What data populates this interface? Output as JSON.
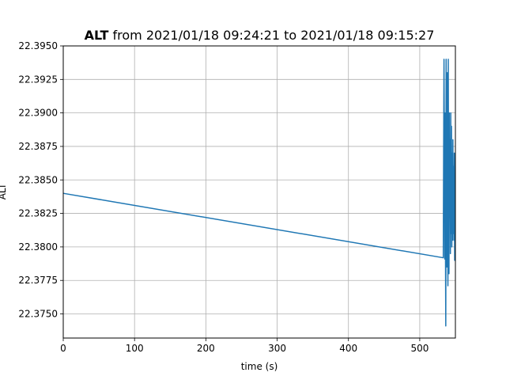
{
  "chart_data": {
    "type": "line",
    "title_bold": "ALT",
    "title_rest": " from 2021/01/18 09:24:21 to 2021/01/18 09:15:27",
    "xlabel": "time (s)",
    "ylabel": "ALT",
    "xlim": [
      0,
      550
    ],
    "ylim": [
      22.3732,
      22.395
    ],
    "xticks": [
      0,
      100,
      200,
      300,
      400,
      500
    ],
    "yticks": [
      22.375,
      22.3775,
      22.38,
      22.3825,
      22.385,
      22.3875,
      22.39,
      22.3925,
      22.395
    ],
    "ytick_labels": [
      "22.3750",
      "22.3775",
      "22.3800",
      "22.3825",
      "22.3850",
      "22.3875",
      "22.3900",
      "22.3925",
      "22.3950"
    ],
    "grid": true,
    "line_color": "#1f77b4",
    "series": [
      {
        "x": [
          0,
          532,
          533,
          533.5,
          534,
          534.5,
          535,
          535.5,
          536,
          536.5,
          537,
          537.5,
          538,
          538.5,
          539,
          539.5,
          540,
          540.5,
          541,
          541.5,
          542,
          542.5,
          543,
          543.5,
          544,
          544.5,
          545,
          545.5,
          546,
          546.5,
          547,
          547.5,
          548,
          548.5,
          549,
          549.5,
          550
        ],
        "y": [
          22.384,
          22.3792,
          22.3792,
          22.387,
          22.394,
          22.388,
          22.3791,
          22.39,
          22.381,
          22.3741,
          22.394,
          22.383,
          22.3785,
          22.393,
          22.386,
          22.3771,
          22.394,
          22.382,
          22.378,
          22.39,
          22.383,
          22.388,
          22.3795,
          22.39,
          22.381,
          22.389,
          22.38,
          22.387,
          22.3805,
          22.388,
          22.381,
          22.386,
          22.3805,
          22.387,
          22.379,
          22.379,
          22.379
        ]
      }
    ]
  }
}
